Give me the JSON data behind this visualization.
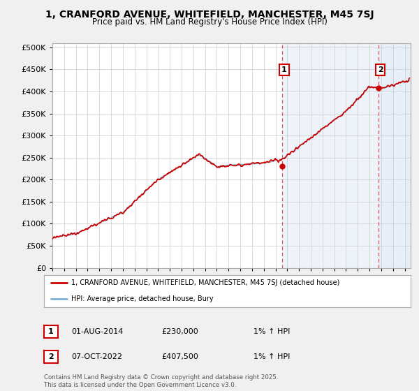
{
  "title": "1, CRANFORD AVENUE, WHITEFIELD, MANCHESTER, M45 7SJ",
  "subtitle": "Price paid vs. HM Land Registry's House Price Index (HPI)",
  "ytick_values": [
    0,
    50000,
    100000,
    150000,
    200000,
    250000,
    300000,
    350000,
    400000,
    450000,
    500000
  ],
  "ylim": [
    0,
    510000
  ],
  "xlim_start": 1995.0,
  "xlim_end": 2025.5,
  "xtick_years": [
    1995,
    1996,
    1997,
    1998,
    1999,
    2000,
    2001,
    2002,
    2003,
    2004,
    2005,
    2006,
    2007,
    2008,
    2009,
    2010,
    2011,
    2012,
    2013,
    2014,
    2015,
    2016,
    2017,
    2018,
    2019,
    2020,
    2021,
    2022,
    2023,
    2024,
    2025
  ],
  "hpi_color": "#7bafd4",
  "price_color": "#cc0000",
  "marker1_x": 2014.58,
  "marker1_y": 230000,
  "marker2_x": 2022.77,
  "marker2_y": 407500,
  "dashed_line_color": "#cc3333",
  "shade_color": "#dde8f5",
  "legend_label1": "1, CRANFORD AVENUE, WHITEFIELD, MANCHESTER, M45 7SJ (detached house)",
  "legend_label2": "HPI: Average price, detached house, Bury",
  "annotation1_label": "1",
  "annotation2_label": "2",
  "table_row1": [
    "1",
    "01-AUG-2014",
    "£230,000",
    "1% ↑ HPI"
  ],
  "table_row2": [
    "2",
    "07-OCT-2022",
    "£407,500",
    "1% ↑ HPI"
  ],
  "footer": "Contains HM Land Registry data © Crown copyright and database right 2025.\nThis data is licensed under the Open Government Licence v3.0.",
  "background_color": "#f0f0f0",
  "plot_bg_color": "#ffffff",
  "grid_color": "#cccccc"
}
